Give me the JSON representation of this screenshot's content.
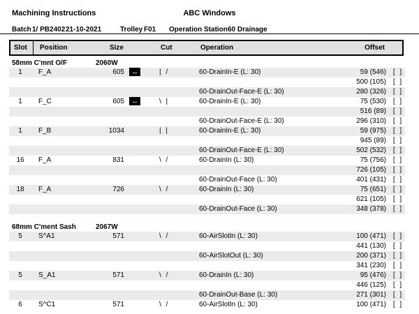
{
  "header": {
    "title": "Machining Instructions",
    "company": "ABC Windows"
  },
  "batch": {
    "batch_label": "Batch",
    "batch_value": "1/ PB2402",
    "batch_date": "21-10-2021",
    "trolley_label": "Trolley",
    "trolley_value": "F01",
    "station_label": "Operation Station",
    "station_value": "60 Drainage"
  },
  "columns": {
    "slot": "Slot",
    "position": "Position",
    "size": "Size",
    "cut": "Cut",
    "operation": "Operation",
    "offset": "Offset"
  },
  "glyphs": {
    "resize_arrow": "↔",
    "checkbox": "[ ]"
  },
  "colors": {
    "row_shade": "#ebebeb",
    "header_bg": "#e0e0e0",
    "border": "#000000",
    "icon_bg": "#000000"
  },
  "sections": [
    {
      "name": "58mm C'mnt O/F",
      "code": "2060W",
      "rows": [
        {
          "slot": "1",
          "position": "F_A",
          "size": "605",
          "size_icon": true,
          "cut": "| /",
          "operation": "60-DrainIn-E (L: 30)",
          "offset": "59 (546)",
          "shaded": true
        },
        {
          "offset": "500 (105)",
          "shaded": false
        },
        {
          "operation": "60-DrainOut-Face-E (L: 30)",
          "offset": "280 (326)",
          "shaded": true
        },
        {
          "slot": "1",
          "position": "F_C",
          "size": "605",
          "size_icon": true,
          "cut": "\\ |",
          "operation": "60-DrainIn-E (L: 30)",
          "offset": "75 (530)",
          "shaded": false
        },
        {
          "offset": "516 (89)",
          "shaded": true
        },
        {
          "operation": "60-DrainOut-Face-E (L: 30)",
          "offset": "296 (310)",
          "shaded": false
        },
        {
          "slot": "1",
          "position": "F_B",
          "size": "1034",
          "size_icon": false,
          "cut": "| |",
          "operation": "60-DrainIn-E (L: 30)",
          "offset": "59 (975)",
          "shaded": true
        },
        {
          "offset": "945 (89)",
          "shaded": false
        },
        {
          "operation": "60-DrainOut-Face-E (L: 30)",
          "offset": "502 (532)",
          "shaded": true
        },
        {
          "slot": "16",
          "position": "F_A",
          "size": "831",
          "size_icon": false,
          "cut": "\\ /",
          "operation": "60-DrainIn (L: 30)",
          "offset": "75 (756)",
          "shaded": false
        },
        {
          "offset": "726 (105)",
          "shaded": true
        },
        {
          "operation": "60-DrainOut-Face (L: 30)",
          "offset": "401 (431)",
          "shaded": false
        },
        {
          "slot": "18",
          "position": "F_A",
          "size": "726",
          "size_icon": false,
          "cut": "\\ /",
          "operation": "60-DrainIn (L: 30)",
          "offset": "75 (651)",
          "shaded": true
        },
        {
          "offset": "621 (105)",
          "shaded": false
        },
        {
          "operation": "60-DrainOut-Face (L: 30)",
          "offset": "348 (378)",
          "shaded": true
        }
      ]
    },
    {
      "name": "68mm C'ment Sash",
      "code": "2067W",
      "rows": [
        {
          "slot": "5",
          "position": "S^A1",
          "size": "571",
          "size_icon": false,
          "cut": "\\ /",
          "operation": "60-AirSlotIn (L: 30)",
          "offset": "100 (471)",
          "shaded": true
        },
        {
          "offset": "441 (130)",
          "shaded": false
        },
        {
          "operation": "60-AirSlotOut (L: 30)",
          "offset": "200 (371)",
          "shaded": true
        },
        {
          "offset": "341 (230)",
          "shaded": false
        },
        {
          "slot": "5",
          "position": "S_A1",
          "size": "571",
          "size_icon": false,
          "cut": "\\ /",
          "operation": "60-DrainIn (L: 30)",
          "offset": "95 (476)",
          "shaded": true
        },
        {
          "offset": "446 (125)",
          "shaded": false
        },
        {
          "operation": "60-DrainOut-Base (L: 30)",
          "offset": "271 (301)",
          "shaded": true
        },
        {
          "slot": "6",
          "position": "S^C1",
          "size": "571",
          "size_icon": false,
          "cut": "\\ /",
          "operation": "60-AirSlotIn (L: 30)",
          "offset": "100 (471)",
          "shaded": false
        }
      ]
    }
  ]
}
